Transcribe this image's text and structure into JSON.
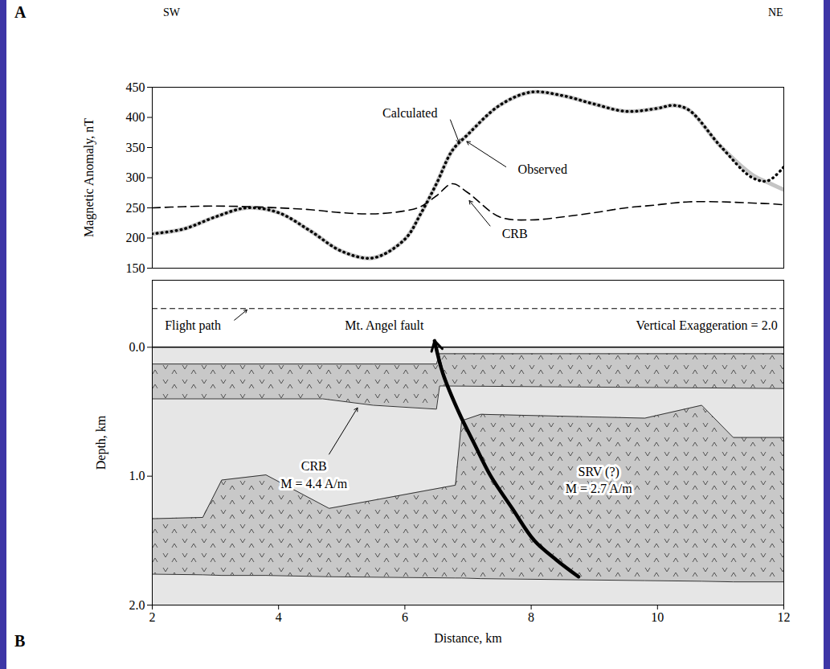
{
  "figure": {
    "panels": [
      "A",
      "B"
    ],
    "direction_labels": [
      "SW",
      "NE"
    ]
  },
  "chart_data": [
    {
      "type": "line",
      "ylabel": "Magnetic Anomaly, nT",
      "xlim": [
        2,
        12
      ],
      "ylim": [
        150,
        450
      ],
      "yticks": [
        150,
        200,
        250,
        300,
        350,
        400,
        450
      ],
      "tick_labels": "y",
      "x": [
        2,
        2.5,
        3,
        3.5,
        4,
        4.5,
        5,
        5.5,
        6,
        6.25,
        6.5,
        6.75,
        7,
        7.5,
        8,
        8.5,
        9,
        9.5,
        10,
        10.25,
        10.5,
        11,
        11.5,
        11.75,
        12
      ],
      "series": [
        {
          "name": "Calculated",
          "color": "#c4c4c4",
          "line_style": "solid",
          "values": [
            207,
            215,
            235,
            250,
            242,
            212,
            178,
            167,
            198,
            240,
            290,
            345,
            372,
            420,
            442,
            436,
            422,
            410,
            415,
            420,
            412,
            352,
            305,
            292,
            280
          ]
        },
        {
          "name": "Observed",
          "color": "#000000",
          "line_style": "dotted",
          "values": [
            207,
            215,
            235,
            250,
            242,
            212,
            178,
            167,
            198,
            240,
            290,
            345,
            372,
            420,
            442,
            436,
            422,
            410,
            415,
            420,
            412,
            352,
            300,
            295,
            318
          ]
        },
        {
          "name": "CRB",
          "color": "#000000",
          "line_style": "dashed",
          "values": [
            250,
            252,
            253,
            252,
            250,
            247,
            242,
            240,
            245,
            252,
            270,
            290,
            275,
            235,
            230,
            235,
            242,
            250,
            255,
            258,
            260,
            260,
            258,
            257,
            255
          ]
        }
      ]
    },
    {
      "type": "cross_section",
      "xlabel": "Distance, km",
      "ylabel": "Depth, km",
      "xlim": [
        2,
        12
      ],
      "ylim": [
        2,
        -0.52
      ],
      "xticks": [
        2,
        4,
        6,
        8,
        10,
        12
      ],
      "yticks": [
        0,
        1,
        2
      ],
      "color": "#e6e6e6",
      "annotations": [
        "Vertical Exaggeration = 2.0"
      ],
      "surface": {
        "x": [
          2,
          12
        ],
        "depth": [
          0,
          0
        ]
      },
      "flight_path": {
        "label": "Flight path",
        "x": [
          2,
          12
        ],
        "depth": [
          -0.3,
          -0.3
        ]
      },
      "fault": {
        "label": "Mt. Angel fault",
        "x": [
          6.47,
          6.6,
          6.85,
          7.1,
          7.36,
          7.7,
          8.05,
          8.4,
          8.75
        ],
        "depth": [
          -0.05,
          0.2,
          0.5,
          0.75,
          1.0,
          1.25,
          1.5,
          1.65,
          1.78
        ]
      },
      "units": [
        {
          "label": [
            "CRB",
            "M = 4.4 A/m"
          ],
          "color": "#c8c8c8",
          "x": [
            2,
            4.7,
            5.5,
            6.5,
            6.55,
            12
          ],
          "top": [
            0.13,
            0.13,
            0.13,
            0.13,
            0.05,
            0.05
          ],
          "bottom": [
            0.4,
            0.4,
            0.45,
            0.48,
            0.3,
            0.32
          ]
        },
        {
          "label": [
            "SRV (?)",
            "M = 2.7 A/m"
          ],
          "color": "#c8c8c8",
          "x": [
            2,
            2.8,
            3.1,
            3.8,
            4.8,
            6.8,
            6.9,
            7.2,
            9.8,
            10.7,
            11.2,
            12
          ],
          "top": [
            1.33,
            1.32,
            1.03,
            0.99,
            1.25,
            1.07,
            0.57,
            0.52,
            0.55,
            0.45,
            0.7,
            0.7
          ],
          "bottom": [
            1.76,
            1.765,
            1.77,
            1.77,
            1.78,
            1.79,
            1.79,
            1.795,
            1.81,
            1.815,
            1.82,
            1.82
          ]
        }
      ]
    }
  ]
}
